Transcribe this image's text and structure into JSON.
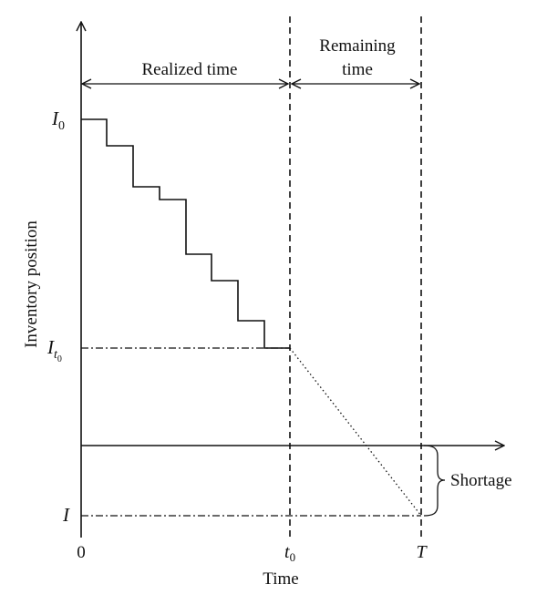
{
  "labels": {
    "y_axis": "Inventory position",
    "x_axis": "Time",
    "realized": "Realized time",
    "remaining_line1": "Remaining",
    "remaining_line2": "time",
    "shortage": "Shortage",
    "origin": "0",
    "t0": "t",
    "t0_sub": "0",
    "T": "T",
    "I0": "I",
    "I0_sub": "0",
    "It0": "I",
    "It0_sub": "t",
    "It0_subsub": "0",
    "I": "I"
  }
}
